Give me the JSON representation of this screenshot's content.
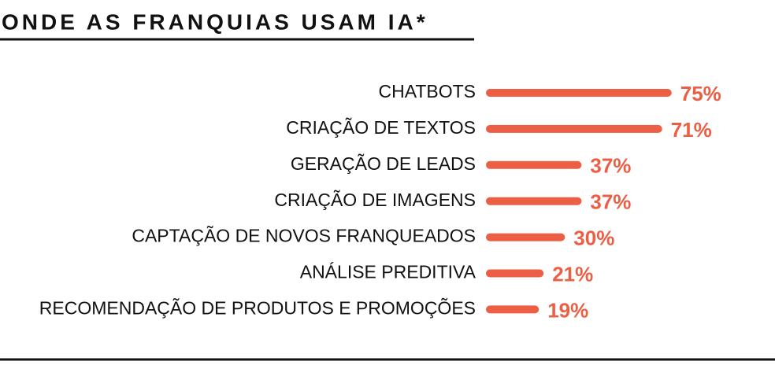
{
  "chart_data": {
    "type": "bar",
    "orientation": "horizontal",
    "title": "ONDE AS FRANQUIAS USAM IA*",
    "categories": [
      "CHATBOTS",
      "CRIAÇÃO DE TEXTOS",
      "GERAÇÃO DE LEADS",
      "CRIAÇÃO DE IMAGENS",
      "CAPTAÇÃO DE NOVOS FRANQUEADOS",
      "ANÁLISE PREDITIVA",
      "RECOMENDAÇÃO DE PRODUTOS E PROMOÇÕES"
    ],
    "values": [
      75,
      71,
      37,
      37,
      30,
      21,
      19
    ],
    "value_labels": [
      "75%",
      "71%",
      "37%",
      "37%",
      "30%",
      "21%",
      "19%"
    ],
    "color": "#ec5f45"
  }
}
